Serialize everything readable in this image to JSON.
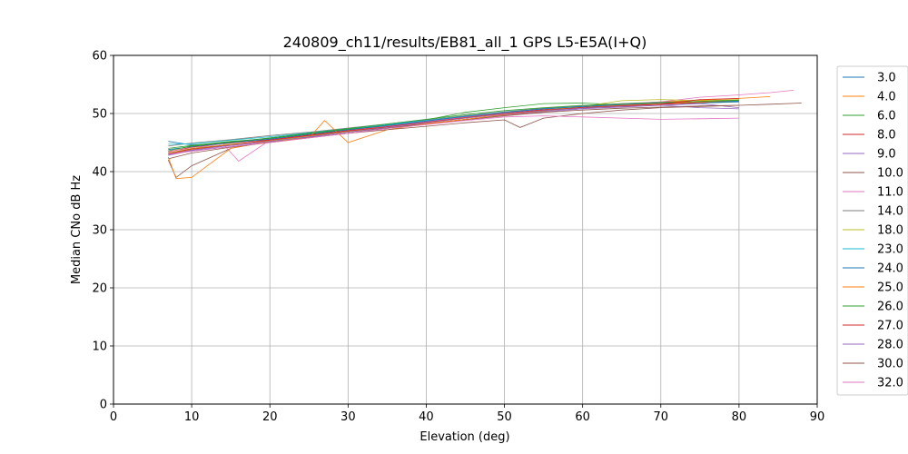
{
  "chart_data": {
    "type": "line",
    "title": "240809_ch11/results/EB81_all_1 GPS L5-E5A(I+Q)",
    "xlabel": "Elevation (deg)",
    "ylabel": "Median CNo dB Hz",
    "xlim": [
      0,
      90
    ],
    "ylim": [
      0,
      60
    ],
    "xticks": [
      0,
      10,
      20,
      30,
      40,
      50,
      60,
      70,
      80,
      90
    ],
    "yticks": [
      0,
      10,
      20,
      30,
      40,
      50,
      60
    ],
    "grid": true,
    "legend_position": "right",
    "series": [
      {
        "name": "3.0",
        "color": "#1f77b4",
        "x": [
          7,
          10,
          15,
          20,
          25,
          30,
          35,
          40,
          45,
          50,
          55,
          60,
          65,
          70,
          75,
          80
        ],
        "y": [
          45.2,
          44.6,
          45.0,
          45.8,
          46.6,
          47.2,
          47.9,
          48.8,
          49.6,
          50.2,
          50.8,
          51.0,
          51.3,
          51.6,
          51.8,
          52.0
        ]
      },
      {
        "name": "4.0",
        "color": "#ff7f0e",
        "x": [
          7,
          10,
          15,
          20,
          25,
          30,
          35,
          40,
          45,
          50,
          55,
          60,
          65,
          70,
          75,
          80,
          84
        ],
        "y": [
          43.0,
          43.8,
          44.6,
          45.4,
          46.0,
          46.8,
          47.5,
          48.3,
          49.0,
          49.7,
          50.4,
          51.0,
          51.6,
          52.0,
          52.3,
          52.6,
          52.9
        ]
      },
      {
        "name": "6.0",
        "color": "#2ca02c",
        "x": [
          7,
          10,
          15,
          20,
          25,
          30,
          35,
          40,
          45,
          50,
          55,
          60,
          65,
          70,
          75,
          80
        ],
        "y": [
          44.0,
          44.5,
          45.2,
          45.7,
          46.5,
          47.3,
          48.0,
          48.9,
          50.2,
          51.0,
          51.7,
          51.8,
          51.5,
          51.7,
          51.9,
          52.1
        ]
      },
      {
        "name": "8.0",
        "color": "#d62728",
        "x": [
          7,
          10,
          15,
          20,
          25,
          30,
          35,
          40,
          45,
          50,
          55,
          60,
          65,
          70,
          75,
          80
        ],
        "y": [
          43.4,
          44.2,
          44.9,
          45.5,
          46.3,
          47.1,
          47.8,
          48.6,
          49.4,
          50.1,
          50.7,
          51.1,
          51.4,
          51.6,
          51.9,
          52.2
        ]
      },
      {
        "name": "9.0",
        "color": "#9467bd",
        "x": [
          7,
          10,
          15,
          20,
          25,
          30,
          35,
          40,
          45,
          50,
          55,
          60,
          65,
          70,
          75,
          80
        ],
        "y": [
          42.8,
          43.6,
          44.3,
          45.1,
          45.9,
          46.6,
          47.4,
          48.2,
          49.0,
          49.7,
          50.3,
          50.8,
          51.1,
          51.4,
          51.7,
          51.0
        ]
      },
      {
        "name": "10.0",
        "color": "#8c564b",
        "x": [
          7,
          8,
          10,
          15,
          20,
          25,
          30,
          35,
          40,
          45,
          50,
          55,
          60,
          65,
          70,
          75,
          80,
          84,
          88
        ],
        "y": [
          42.0,
          39.0,
          41.0,
          44.0,
          45.2,
          46.0,
          46.8,
          47.5,
          48.2,
          48.9,
          49.6,
          50.2,
          50.6,
          50.9,
          51.1,
          51.3,
          51.4,
          51.6,
          51.8
        ]
      },
      {
        "name": "11.0",
        "color": "#e377c2",
        "x": [
          7,
          10,
          14,
          16,
          20,
          25,
          30,
          35,
          40,
          45,
          50,
          55,
          60,
          65,
          70,
          75,
          80,
          84,
          87
        ],
        "y": [
          43.5,
          44.0,
          44.8,
          41.8,
          45.4,
          46.2,
          47.0,
          47.8,
          48.6,
          49.4,
          50.1,
          50.8,
          51.3,
          51.7,
          52.0,
          52.8,
          53.2,
          53.6,
          54.0
        ]
      },
      {
        "name": "14.0",
        "color": "#7f7f7f",
        "x": [
          7,
          10,
          15,
          20,
          25,
          30,
          35,
          40,
          45,
          50,
          55,
          60,
          65,
          70,
          75,
          80
        ],
        "y": [
          44.4,
          44.9,
          45.5,
          46.2,
          46.8,
          47.5,
          48.2,
          48.9,
          49.6,
          50.3,
          50.9,
          51.3,
          51.6,
          51.9,
          52.1,
          52.3
        ]
      },
      {
        "name": "18.0",
        "color": "#bcbd22",
        "x": [
          7,
          10,
          15,
          20,
          25,
          30,
          35,
          40,
          45,
          50,
          55,
          60,
          65,
          70,
          75,
          80
        ],
        "y": [
          43.2,
          44.0,
          44.7,
          45.3,
          46.1,
          46.9,
          47.6,
          48.4,
          49.2,
          49.9,
          50.6,
          51.2,
          52.2,
          52.4,
          52.2,
          52.4
        ]
      },
      {
        "name": "23.0",
        "color": "#17becf",
        "x": [
          7,
          10,
          15,
          20,
          25,
          30,
          35,
          40,
          45,
          50,
          55,
          60,
          65,
          70,
          75,
          80
        ],
        "y": [
          44.7,
          44.8,
          45.4,
          46.0,
          46.7,
          47.4,
          48.1,
          48.8,
          49.5,
          50.2,
          50.8,
          51.2,
          51.5,
          51.8,
          52.0,
          52.2
        ]
      },
      {
        "name": "24.0",
        "color": "#1f77b4",
        "x": [
          7,
          10,
          15,
          20,
          25,
          30,
          35,
          40,
          45,
          50,
          55,
          60,
          65,
          70,
          75,
          80
        ],
        "y": [
          43.8,
          44.3,
          45.0,
          45.6,
          46.4,
          47.2,
          47.9,
          48.7,
          49.5,
          50.2,
          50.8,
          51.2,
          51.5,
          51.8,
          52.0,
          52.1
        ]
      },
      {
        "name": "25.0",
        "color": "#ff7f0e",
        "x": [
          7,
          8,
          10,
          12,
          15,
          20,
          25,
          27,
          30,
          35,
          40,
          45,
          50,
          55,
          60,
          65,
          70,
          75,
          80
        ],
        "y": [
          42.5,
          38.8,
          39.0,
          41.0,
          44.0,
          45.2,
          45.8,
          48.8,
          45.0,
          47.2,
          48.2,
          49.0,
          49.8,
          50.5,
          51.0,
          51.4,
          51.7,
          52.0,
          52.3
        ]
      },
      {
        "name": "26.0",
        "color": "#2ca02c",
        "x": [
          7,
          10,
          15,
          20,
          25,
          30,
          35,
          40,
          45,
          50,
          55,
          60,
          65,
          70,
          75,
          80
        ],
        "y": [
          43.6,
          44.4,
          45.1,
          45.8,
          46.6,
          47.4,
          48.2,
          49.0,
          49.8,
          50.5,
          51.0,
          51.4,
          51.7,
          51.9,
          52.1,
          52.3
        ]
      },
      {
        "name": "27.0",
        "color": "#d62728",
        "x": [
          7,
          10,
          15,
          20,
          25,
          30,
          35,
          40,
          45,
          50,
          55,
          60,
          65,
          70,
          75,
          80
        ],
        "y": [
          43.1,
          43.9,
          44.6,
          45.4,
          46.2,
          47.0,
          47.7,
          48.5,
          49.3,
          50.0,
          50.6,
          51.0,
          51.3,
          51.6,
          52.4,
          52.6
        ]
      },
      {
        "name": "28.0",
        "color": "#9467bd",
        "x": [
          7,
          10,
          15,
          20,
          25,
          30,
          35,
          40,
          45,
          50,
          55,
          60,
          65,
          70,
          75,
          80
        ],
        "y": [
          42.9,
          43.7,
          44.5,
          45.2,
          46.0,
          46.8,
          47.6,
          48.4,
          49.2,
          49.9,
          50.5,
          50.9,
          51.2,
          51.4,
          51.0,
          50.8
        ]
      },
      {
        "name": "30.0",
        "color": "#8c564b",
        "x": [
          7,
          10,
          15,
          20,
          25,
          30,
          35,
          40,
          45,
          50,
          52,
          55,
          60,
          65,
          70,
          75,
          80
        ],
        "y": [
          42.2,
          43.2,
          44.2,
          45.0,
          45.8,
          46.6,
          47.2,
          47.8,
          48.4,
          48.9,
          47.6,
          49.2,
          50.0,
          50.6,
          51.0,
          51.2,
          51.4
        ]
      },
      {
        "name": "32.0",
        "color": "#e377c2",
        "x": [
          7,
          10,
          15,
          20,
          25,
          30,
          35,
          40,
          45,
          50,
          55,
          60,
          65,
          70,
          75,
          80
        ],
        "y": [
          43.0,
          43.5,
          44.3,
          45.0,
          45.8,
          46.6,
          47.4,
          48.1,
          48.8,
          49.4,
          49.6,
          49.4,
          49.2,
          49.0,
          49.1,
          49.2
        ]
      }
    ]
  }
}
